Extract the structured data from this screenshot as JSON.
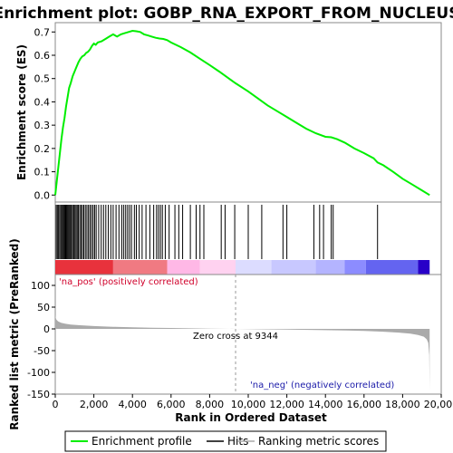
{
  "chart_data": {
    "type": "line",
    "title": "Enrichment plot: GOBP_RNA_EXPORT_FROM_NUCLEUS",
    "es_panel": {
      "ylabel": "Enrichment score (ES)",
      "ylim": [
        -0.03,
        0.74
      ],
      "yticks": [
        0.0,
        0.1,
        0.2,
        0.3,
        0.4,
        0.5,
        0.6,
        0.7
      ],
      "ytick_labels": [
        "0.0",
        "0.1",
        "0.2",
        "0.3",
        "0.4",
        "0.5",
        "0.6",
        "0.7"
      ],
      "series": [
        {
          "name": "Enrichment profile",
          "color": "#00ee00",
          "x": [
            0,
            80,
            160,
            240,
            320,
            400,
            480,
            560,
            640,
            720,
            800,
            900,
            1000,
            1100,
            1200,
            1300,
            1400,
            1500,
            1600,
            1700,
            1800,
            1900,
            2000,
            2100,
            2200,
            2400,
            2600,
            2800,
            3000,
            3200,
            3400,
            3600,
            3800,
            4000,
            4200,
            4400,
            4600,
            4800,
            5000,
            5200,
            5400,
            5600,
            5800,
            6000,
            6500,
            7000,
            7500,
            8000,
            8500,
            9000,
            9344,
            10000,
            10500,
            11000,
            11500,
            12000,
            12500,
            13000,
            13500,
            14000,
            14300,
            14600,
            15000,
            15500,
            16000,
            16500,
            16700,
            17000,
            17500,
            18000,
            18500,
            19000,
            19400
          ],
          "y": [
            0.0,
            0.06,
            0.12,
            0.18,
            0.24,
            0.29,
            0.33,
            0.38,
            0.42,
            0.46,
            0.48,
            0.51,
            0.53,
            0.55,
            0.57,
            0.585,
            0.595,
            0.6,
            0.61,
            0.615,
            0.625,
            0.64,
            0.65,
            0.645,
            0.655,
            0.66,
            0.67,
            0.68,
            0.69,
            0.68,
            0.69,
            0.695,
            0.7,
            0.705,
            0.703,
            0.7,
            0.69,
            0.685,
            0.68,
            0.675,
            0.672,
            0.67,
            0.665,
            0.655,
            0.635,
            0.612,
            0.585,
            0.558,
            0.53,
            0.5,
            0.48,
            0.445,
            0.415,
            0.385,
            0.36,
            0.335,
            0.31,
            0.285,
            0.265,
            0.25,
            0.248,
            0.24,
            0.225,
            0.2,
            0.18,
            0.158,
            0.14,
            0.128,
            0.1,
            0.07,
            0.045,
            0.02,
            0.0
          ]
        }
      ]
    },
    "hits": {
      "name": "Hits",
      "positions": [
        50,
        110,
        170,
        230,
        290,
        340,
        390,
        440,
        490,
        540,
        590,
        640,
        690,
        740,
        790,
        840,
        900,
        960,
        1020,
        1080,
        1140,
        1200,
        1270,
        1340,
        1410,
        1480,
        1560,
        1640,
        1720,
        1800,
        1880,
        1960,
        2040,
        2120,
        2250,
        2380,
        2500,
        2620,
        2750,
        2880,
        3000,
        3150,
        3300,
        3450,
        3550,
        3650,
        3750,
        3850,
        3950,
        4100,
        4200,
        4350,
        4500,
        4700,
        4900,
        5100,
        5250,
        5350,
        5450,
        5550,
        5700,
        5900,
        6200,
        6400,
        6600,
        7000,
        7300,
        7500,
        7700,
        8600,
        8800,
        9300,
        10000,
        10700,
        11800,
        12000,
        13400,
        13700,
        13900,
        14300,
        14400,
        16700
      ]
    },
    "ranking_bar": {
      "segments": [
        {
          "from": 0,
          "to": 3000,
          "color": "#e8323c"
        },
        {
          "from": 3000,
          "to": 5800,
          "color": "#f07a82"
        },
        {
          "from": 5800,
          "to": 7500,
          "color": "#ffb8e6"
        },
        {
          "from": 7500,
          "to": 9344,
          "color": "#ffd2f0"
        },
        {
          "from": 9344,
          "to": 11200,
          "color": "#dcdcff"
        },
        {
          "from": 11200,
          "to": 13500,
          "color": "#c8c8ff"
        },
        {
          "from": 13500,
          "to": 15000,
          "color": "#b4b4ff"
        },
        {
          "from": 15000,
          "to": 16100,
          "color": "#8c8cff"
        },
        {
          "from": 16100,
          "to": 18800,
          "color": "#6464f0"
        },
        {
          "from": 18800,
          "to": 19400,
          "color": "#2800c8"
        }
      ]
    },
    "metric_panel": {
      "ylabel": "Ranked list metric (PreRanked)",
      "ylim": [
        -150,
        125
      ],
      "yticks": [
        100,
        50,
        0,
        -50,
        -100,
        -150
      ],
      "ytick_labels": [
        "100",
        "50",
        "0",
        "-50",
        "-100",
        "-150"
      ],
      "x": [
        0,
        20,
        60,
        150,
        300,
        500,
        800,
        1200,
        2000,
        3000,
        4000,
        5000,
        6000,
        7000,
        8000,
        9344,
        10500,
        12000,
        13500,
        15000,
        16000,
        17000,
        17800,
        18400,
        18800,
        19100,
        19250,
        19330,
        19380,
        19400
      ],
      "values": [
        33,
        26,
        21,
        17,
        14,
        12,
        10,
        8.5,
        6.5,
        4.8,
        3.6,
        2.8,
        2.0,
        1.3,
        0.6,
        0.0,
        -0.8,
        -1.6,
        -2.5,
        -3.6,
        -4.8,
        -6.5,
        -8.5,
        -11,
        -14,
        -18,
        -24,
        -32,
        -60,
        -140
      ],
      "color": "#aaaaaa"
    },
    "xaxis": {
      "xlabel": "Rank in Ordered Dataset",
      "xlim": [
        0,
        20000
      ],
      "xticks": [
        0,
        2000,
        4000,
        6000,
        8000,
        10000,
        12000,
        14000,
        16000,
        18000,
        20000
      ],
      "xtick_labels": [
        "0",
        "2,000",
        "4,000",
        "6,000",
        "8,000",
        "10,000",
        "12,000",
        "14,000",
        "16,000",
        "18,000",
        "20,000"
      ],
      "total": 19400
    },
    "annotations": {
      "zero_cross_value": 9344,
      "zero_cross_label": "Zero cross at 9344",
      "pos_label": "'na_pos' (positively correlated)",
      "neg_label": "'na_neg' (negatively correlated)",
      "pos_color": "#d0002a",
      "neg_color": "#1a1aa8"
    },
    "legend": {
      "placement": "bottom",
      "items": [
        {
          "label": "Enrichment profile",
          "color": "#00ee00"
        },
        {
          "label": "Hits",
          "color": "#000000"
        },
        {
          "label": "Ranking metric scores",
          "color": "#aaaaaa"
        }
      ]
    }
  }
}
